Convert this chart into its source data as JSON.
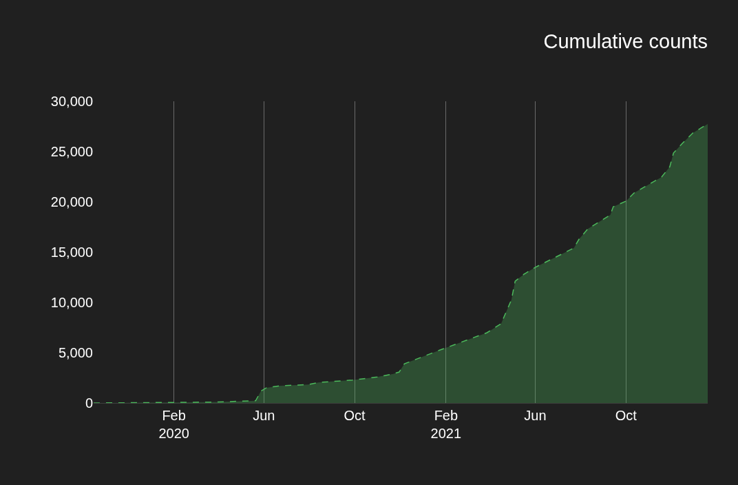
{
  "chart_data": {
    "type": "area",
    "title": "Cumulative counts",
    "x": [
      "2019-10-16",
      "2020-01-19",
      "2020-03-31",
      "2020-05-21",
      "2020-05-28",
      "2020-06-04",
      "2020-06-22",
      "2020-07-30",
      "2020-08-14",
      "2020-09-28",
      "2020-10-31",
      "2020-11-22",
      "2020-11-30",
      "2020-12-07",
      "2021-01-24",
      "2021-03-28",
      "2021-04-16",
      "2021-04-30",
      "2021-05-05",
      "2021-05-17",
      "2021-06-01",
      "2021-07-23",
      "2021-07-30",
      "2021-08-11",
      "2021-09-10",
      "2021-09-14",
      "2021-10-01",
      "2021-10-12",
      "2021-11-18",
      "2021-11-29",
      "2021-12-04",
      "2021-12-16",
      "2021-12-30",
      "2022-01-19"
    ],
    "series": [
      {
        "color": "#4cbb5c",
        "values": [
          0,
          50,
          100,
          230,
          1190,
          1500,
          1710,
          1830,
          2050,
          2280,
          2580,
          2900,
          3080,
          3900,
          5270,
          6990,
          7880,
          10270,
          12120,
          12810,
          13490,
          15410,
          16300,
          17330,
          18700,
          19520,
          20070,
          20890,
          22470,
          23490,
          24860,
          25820,
          26850,
          27740
        ]
      }
    ],
    "xticks": [
      {
        "value": "2020-02-01",
        "label": "Feb\n2020"
      },
      {
        "value": "2020-06-01",
        "label": "Jun"
      },
      {
        "value": "2020-10-01",
        "label": "Oct"
      },
      {
        "value": "2021-02-01",
        "label": "Feb\n2021"
      },
      {
        "value": "2021-06-01",
        "label": "Jun"
      },
      {
        "value": "2021-10-01",
        "label": "Oct"
      }
    ],
    "xlim": [
      "2019-10-16",
      "2022-01-19"
    ],
    "ylim": [
      0,
      30000
    ],
    "yticks": [
      {
        "value": 0,
        "label": "0"
      },
      {
        "value": 5000,
        "label": "5,000"
      },
      {
        "value": 10000,
        "label": "10,000"
      },
      {
        "value": 15000,
        "label": "15,000"
      },
      {
        "value": 20000,
        "label": "20,000"
      },
      {
        "value": 25000,
        "label": "25,000"
      },
      {
        "value": 30000,
        "label": "30,000"
      }
    ],
    "grid": "x",
    "line_style": "dashed",
    "marker": "none"
  }
}
